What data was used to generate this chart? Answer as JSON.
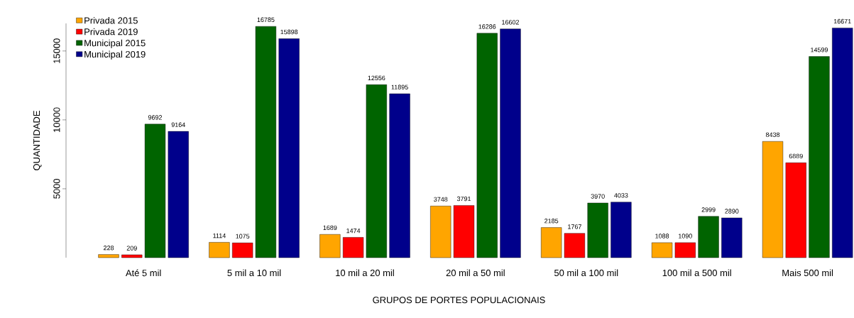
{
  "chart_data": {
    "type": "bar",
    "xlabel": "GRUPOS DE PORTES POPULACIONAIS",
    "ylabel": "QUANTIDADE",
    "categories": [
      "Até 5 mil",
      "5 mil a 10 mil",
      "10 mil  a 20 mil",
      "20 mil a 50 mil",
      "50 mil a 100 mil",
      "100 mil a 500 mil",
      "Mais 500 mil"
    ],
    "series": [
      {
        "name": "Privada 2015",
        "color": "#ffa500",
        "values": [
          228,
          1114,
          1689,
          3748,
          2185,
          1088,
          8438
        ]
      },
      {
        "name": "Privada 2019",
        "color": "#ff0000",
        "values": [
          209,
          1075,
          1474,
          3791,
          1767,
          1090,
          6889
        ]
      },
      {
        "name": "Municipal 2015",
        "color": "#006400",
        "values": [
          9692,
          16785,
          12556,
          16286,
          3970,
          2999,
          14599
        ]
      },
      {
        "name": "Municipal 2019",
        "color": "#00008b",
        "values": [
          9164,
          15898,
          11895,
          16602,
          4033,
          2890,
          16671
        ]
      }
    ],
    "ylim": [
      0,
      17000
    ],
    "yticks": [
      5000,
      10000,
      15000
    ],
    "data_labels": true,
    "legend": "top left",
    "grid": false
  }
}
